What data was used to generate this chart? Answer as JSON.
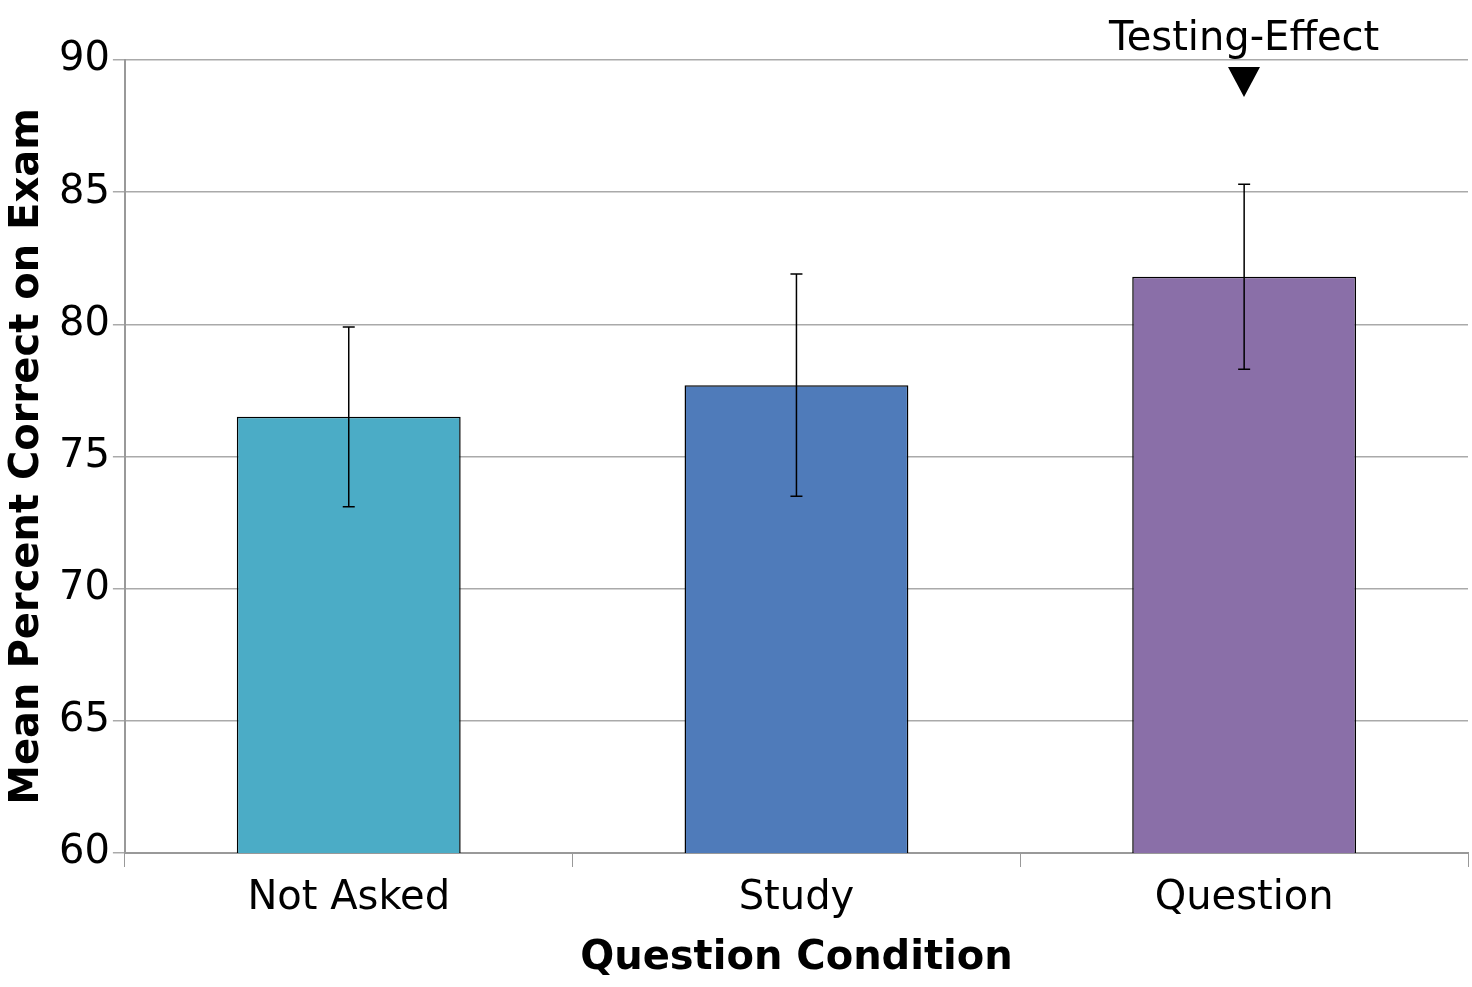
{
  "chart_data": {
    "type": "bar",
    "xlabel": "Question Condition",
    "ylabel": "Mean Percent Correct on Exam",
    "categories": [
      "Not Asked",
      "Study",
      "Question"
    ],
    "values": [
      76.5,
      77.7,
      81.8
    ],
    "colors": [
      "#4bacc6",
      "#4f7bba",
      "#8a6fa8"
    ],
    "errors": [
      3.4,
      4.2,
      3.5
    ],
    "ylim": [
      60,
      90
    ],
    "yticks": [
      60,
      65,
      70,
      75,
      80,
      85,
      90
    ],
    "grid": "y",
    "legend": false,
    "annotations": [
      "Testing-Effect"
    ]
  }
}
